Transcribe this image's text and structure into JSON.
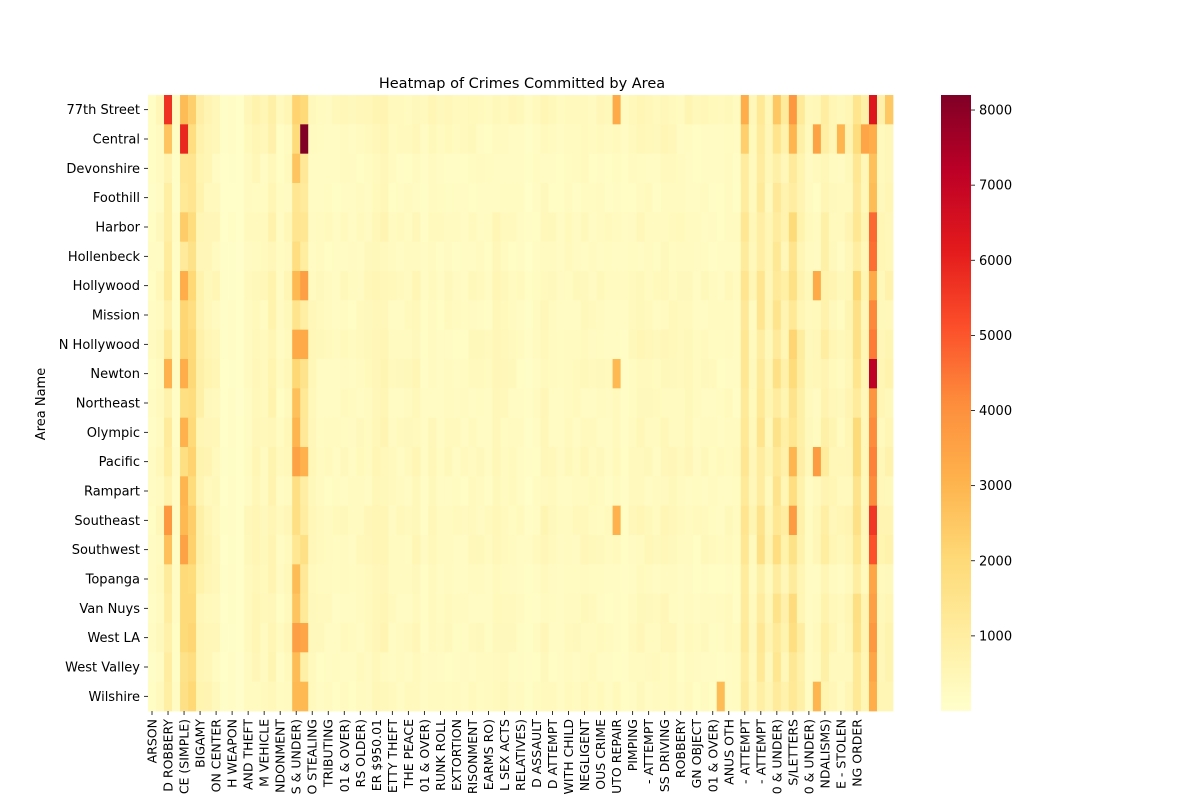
{
  "chart_data": {
    "type": "heatmap",
    "title": "Heatmap of Crimes Committed by Area",
    "ylabel": "Area Name",
    "xlabel": "",
    "colormap": "YlOrRd",
    "color_range": [
      0,
      8200
    ],
    "colorbar_ticks": [
      1000,
      2000,
      3000,
      4000,
      5000,
      6000,
      7000,
      8000
    ],
    "rows": [
      "77th Street",
      "Central",
      "Devonshire",
      "Foothill",
      "Harbor",
      "Hollenbeck",
      "Hollywood",
      "Mission",
      "N Hollywood",
      "Newton",
      "Northeast",
      "Olympic",
      "Pacific",
      "Rampart",
      "Southeast",
      "Southwest",
      "Topanga",
      "Van Nuys",
      "West LA",
      "West Valley",
      "Wilshire"
    ],
    "column_count": 93,
    "column_tick_labels": [
      {
        "col": 0,
        "label": "ARSON"
      },
      {
        "col": 2,
        "label": "D ROBBERY"
      },
      {
        "col": 4,
        "label": "CE (SIMPLE)"
      },
      {
        "col": 6,
        "label": "BIGAMY"
      },
      {
        "col": 8,
        "label": "ON CENTER"
      },
      {
        "col": 10,
        "label": "H WEAPON"
      },
      {
        "col": 12,
        "label": "AND THEFT"
      },
      {
        "col": 14,
        "label": "M VEHICLE"
      },
      {
        "col": 16,
        "label": "NDONMENT"
      },
      {
        "col": 18,
        "label": "S & UNDER)"
      },
      {
        "col": 20,
        "label": "O STEALING"
      },
      {
        "col": 22,
        "label": "TRIBUTING"
      },
      {
        "col": 24,
        "label": "01 & OVER)"
      },
      {
        "col": 26,
        "label": "RS OLDER)"
      },
      {
        "col": 28,
        "label": "ER $950.01"
      },
      {
        "col": 30,
        "label": "ETTY THEFT"
      },
      {
        "col": 32,
        "label": "THE PEACE"
      },
      {
        "col": 34,
        "label": "01 & OVER)"
      },
      {
        "col": 36,
        "label": "RUNK ROLL"
      },
      {
        "col": 38,
        "label": "EXTORTION"
      },
      {
        "col": 40,
        "label": "RISONMENT"
      },
      {
        "col": 42,
        "label": "EARMS RO)"
      },
      {
        "col": 44,
        "label": "L SEX ACTS"
      },
      {
        "col": 46,
        "label": "RELATIVES)"
      },
      {
        "col": 48,
        "label": "D ASSAULT"
      },
      {
        "col": 50,
        "label": "D ATTEMPT"
      },
      {
        "col": 52,
        "label": "WITH CHILD"
      },
      {
        "col": 54,
        "label": "NEGLIGENT"
      },
      {
        "col": 56,
        "label": "OUS CRIME"
      },
      {
        "col": 58,
        "label": "UTO REPAIR"
      },
      {
        "col": 60,
        "label": "PIMPING"
      },
      {
        "col": 62,
        "label": "- ATTEMPT"
      },
      {
        "col": 64,
        "label": "SS DRIVING"
      },
      {
        "col": 66,
        "label": "ROBBERY"
      },
      {
        "col": 68,
        "label": "GN OBJECT"
      },
      {
        "col": 70,
        "label": "01 & OVER)"
      },
      {
        "col": 72,
        "label": "ANUS OTH"
      },
      {
        "col": 74,
        "label": "- ATTEMPT"
      },
      {
        "col": 76,
        "label": "- ATTEMPT"
      },
      {
        "col": 78,
        "label": "0 & UNDER)"
      },
      {
        "col": 80,
        "label": "S/LETTERS"
      },
      {
        "col": 82,
        "label": "0 & UNDER)"
      },
      {
        "col": 84,
        "label": "NDALISMS)"
      },
      {
        "col": 86,
        "label": "E - STOLEN"
      },
      {
        "col": 88,
        "label": "NG ORDER"
      }
    ],
    "column_profile": [
      200,
      300,
      1000,
      200,
      1800,
      1700,
      700,
      500,
      400,
      100,
      150,
      80,
      300,
      450,
      350,
      600,
      250,
      400,
      1700,
      1200,
      350,
      300,
      280,
      250,
      300,
      250,
      300,
      350,
      450,
      500,
      300,
      300,
      300,
      400,
      200,
      350,
      250,
      300,
      250,
      250,
      300,
      300,
      250,
      400,
      350,
      300,
      250,
      150,
      250,
      400,
      300,
      250,
      300,
      300,
      350,
      300,
      300,
      250,
      300,
      200,
      300,
      400,
      350,
      300,
      400,
      350,
      300,
      350,
      250,
      300,
      250,
      250,
      300,
      250,
      1500,
      400,
      1200,
      500,
      1500,
      700,
      1600,
      800,
      300,
      350,
      800,
      450,
      350,
      500,
      1500,
      500,
      3800,
      500,
      600
    ],
    "area_scale": [
      1.3,
      1.0,
      0.8,
      0.8,
      1.0,
      0.85,
      1.1,
      0.95,
      1.05,
      1.05,
      0.95,
      1.0,
      1.1,
      0.95,
      1.15,
      1.1,
      0.9,
      0.95,
      1.0,
      0.85,
      0.95
    ],
    "highlights": [
      {
        "row": 0,
        "col": 2,
        "value": 5700
      },
      {
        "row": 0,
        "col": 4,
        "value": 2800
      },
      {
        "row": 0,
        "col": 18,
        "value": 2200
      },
      {
        "row": 0,
        "col": 19,
        "value": 2000
      },
      {
        "row": 0,
        "col": 58,
        "value": 3300
      },
      {
        "row": 0,
        "col": 74,
        "value": 3200
      },
      {
        "row": 0,
        "col": 80,
        "value": 3800
      },
      {
        "row": 0,
        "col": 90,
        "value": 6300
      },
      {
        "row": 0,
        "col": 92,
        "value": 2500
      },
      {
        "row": 1,
        "col": 2,
        "value": 2600
      },
      {
        "row": 1,
        "col": 4,
        "value": 5900
      },
      {
        "row": 1,
        "col": 18,
        "value": 1900
      },
      {
        "row": 1,
        "col": 19,
        "value": 8200
      },
      {
        "row": 1,
        "col": 74,
        "value": 2300
      },
      {
        "row": 1,
        "col": 80,
        "value": 3000
      },
      {
        "row": 1,
        "col": 83,
        "value": 3500
      },
      {
        "row": 1,
        "col": 86,
        "value": 3000
      },
      {
        "row": 1,
        "col": 89,
        "value": 3400
      },
      {
        "row": 1,
        "col": 90,
        "value": 3200
      },
      {
        "row": 2,
        "col": 18,
        "value": 2600
      },
      {
        "row": 2,
        "col": 90,
        "value": 2700
      },
      {
        "row": 3,
        "col": 90,
        "value": 2800
      },
      {
        "row": 4,
        "col": 4,
        "value": 2400
      },
      {
        "row": 4,
        "col": 90,
        "value": 4700
      },
      {
        "row": 5,
        "col": 90,
        "value": 4600
      },
      {
        "row": 6,
        "col": 4,
        "value": 3200
      },
      {
        "row": 6,
        "col": 18,
        "value": 2900
      },
      {
        "row": 6,
        "col": 19,
        "value": 3600
      },
      {
        "row": 6,
        "col": 83,
        "value": 3300
      },
      {
        "row": 6,
        "col": 90,
        "value": 3300
      },
      {
        "row": 7,
        "col": 90,
        "value": 4200
      },
      {
        "row": 8,
        "col": 18,
        "value": 3300
      },
      {
        "row": 8,
        "col": 19,
        "value": 3300
      },
      {
        "row": 8,
        "col": 90,
        "value": 4400
      },
      {
        "row": 9,
        "col": 2,
        "value": 3100
      },
      {
        "row": 9,
        "col": 4,
        "value": 3200
      },
      {
        "row": 9,
        "col": 58,
        "value": 2900
      },
      {
        "row": 9,
        "col": 90,
        "value": 7200
      },
      {
        "row": 10,
        "col": 18,
        "value": 2700
      },
      {
        "row": 10,
        "col": 90,
        "value": 3900
      },
      {
        "row": 11,
        "col": 4,
        "value": 3100
      },
      {
        "row": 11,
        "col": 18,
        "value": 3000
      },
      {
        "row": 11,
        "col": 90,
        "value": 4100
      },
      {
        "row": 12,
        "col": 18,
        "value": 3500
      },
      {
        "row": 12,
        "col": 19,
        "value": 3100
      },
      {
        "row": 12,
        "col": 80,
        "value": 3000
      },
      {
        "row": 12,
        "col": 83,
        "value": 3700
      },
      {
        "row": 12,
        "col": 90,
        "value": 4300
      },
      {
        "row": 13,
        "col": 4,
        "value": 3000
      },
      {
        "row": 13,
        "col": 90,
        "value": 4100
      },
      {
        "row": 14,
        "col": 2,
        "value": 3800
      },
      {
        "row": 14,
        "col": 4,
        "value": 2900
      },
      {
        "row": 14,
        "col": 58,
        "value": 3100
      },
      {
        "row": 14,
        "col": 80,
        "value": 3700
      },
      {
        "row": 14,
        "col": 90,
        "value": 5600
      },
      {
        "row": 15,
        "col": 2,
        "value": 2700
      },
      {
        "row": 15,
        "col": 4,
        "value": 3500
      },
      {
        "row": 15,
        "col": 90,
        "value": 5100
      },
      {
        "row": 16,
        "col": 18,
        "value": 2800
      },
      {
        "row": 16,
        "col": 90,
        "value": 3400
      },
      {
        "row": 17,
        "col": 18,
        "value": 2600
      },
      {
        "row": 17,
        "col": 90,
        "value": 3600
      },
      {
        "row": 18,
        "col": 18,
        "value": 3600
      },
      {
        "row": 18,
        "col": 19,
        "value": 3400
      },
      {
        "row": 18,
        "col": 90,
        "value": 3800
      },
      {
        "row": 19,
        "col": 18,
        "value": 2800
      },
      {
        "row": 19,
        "col": 90,
        "value": 3400
      },
      {
        "row": 20,
        "col": 18,
        "value": 2900
      },
      {
        "row": 20,
        "col": 19,
        "value": 2900
      },
      {
        "row": 20,
        "col": 71,
        "value": 2800
      },
      {
        "row": 20,
        "col": 83,
        "value": 3000
      },
      {
        "row": 20,
        "col": 90,
        "value": 3200
      }
    ]
  }
}
